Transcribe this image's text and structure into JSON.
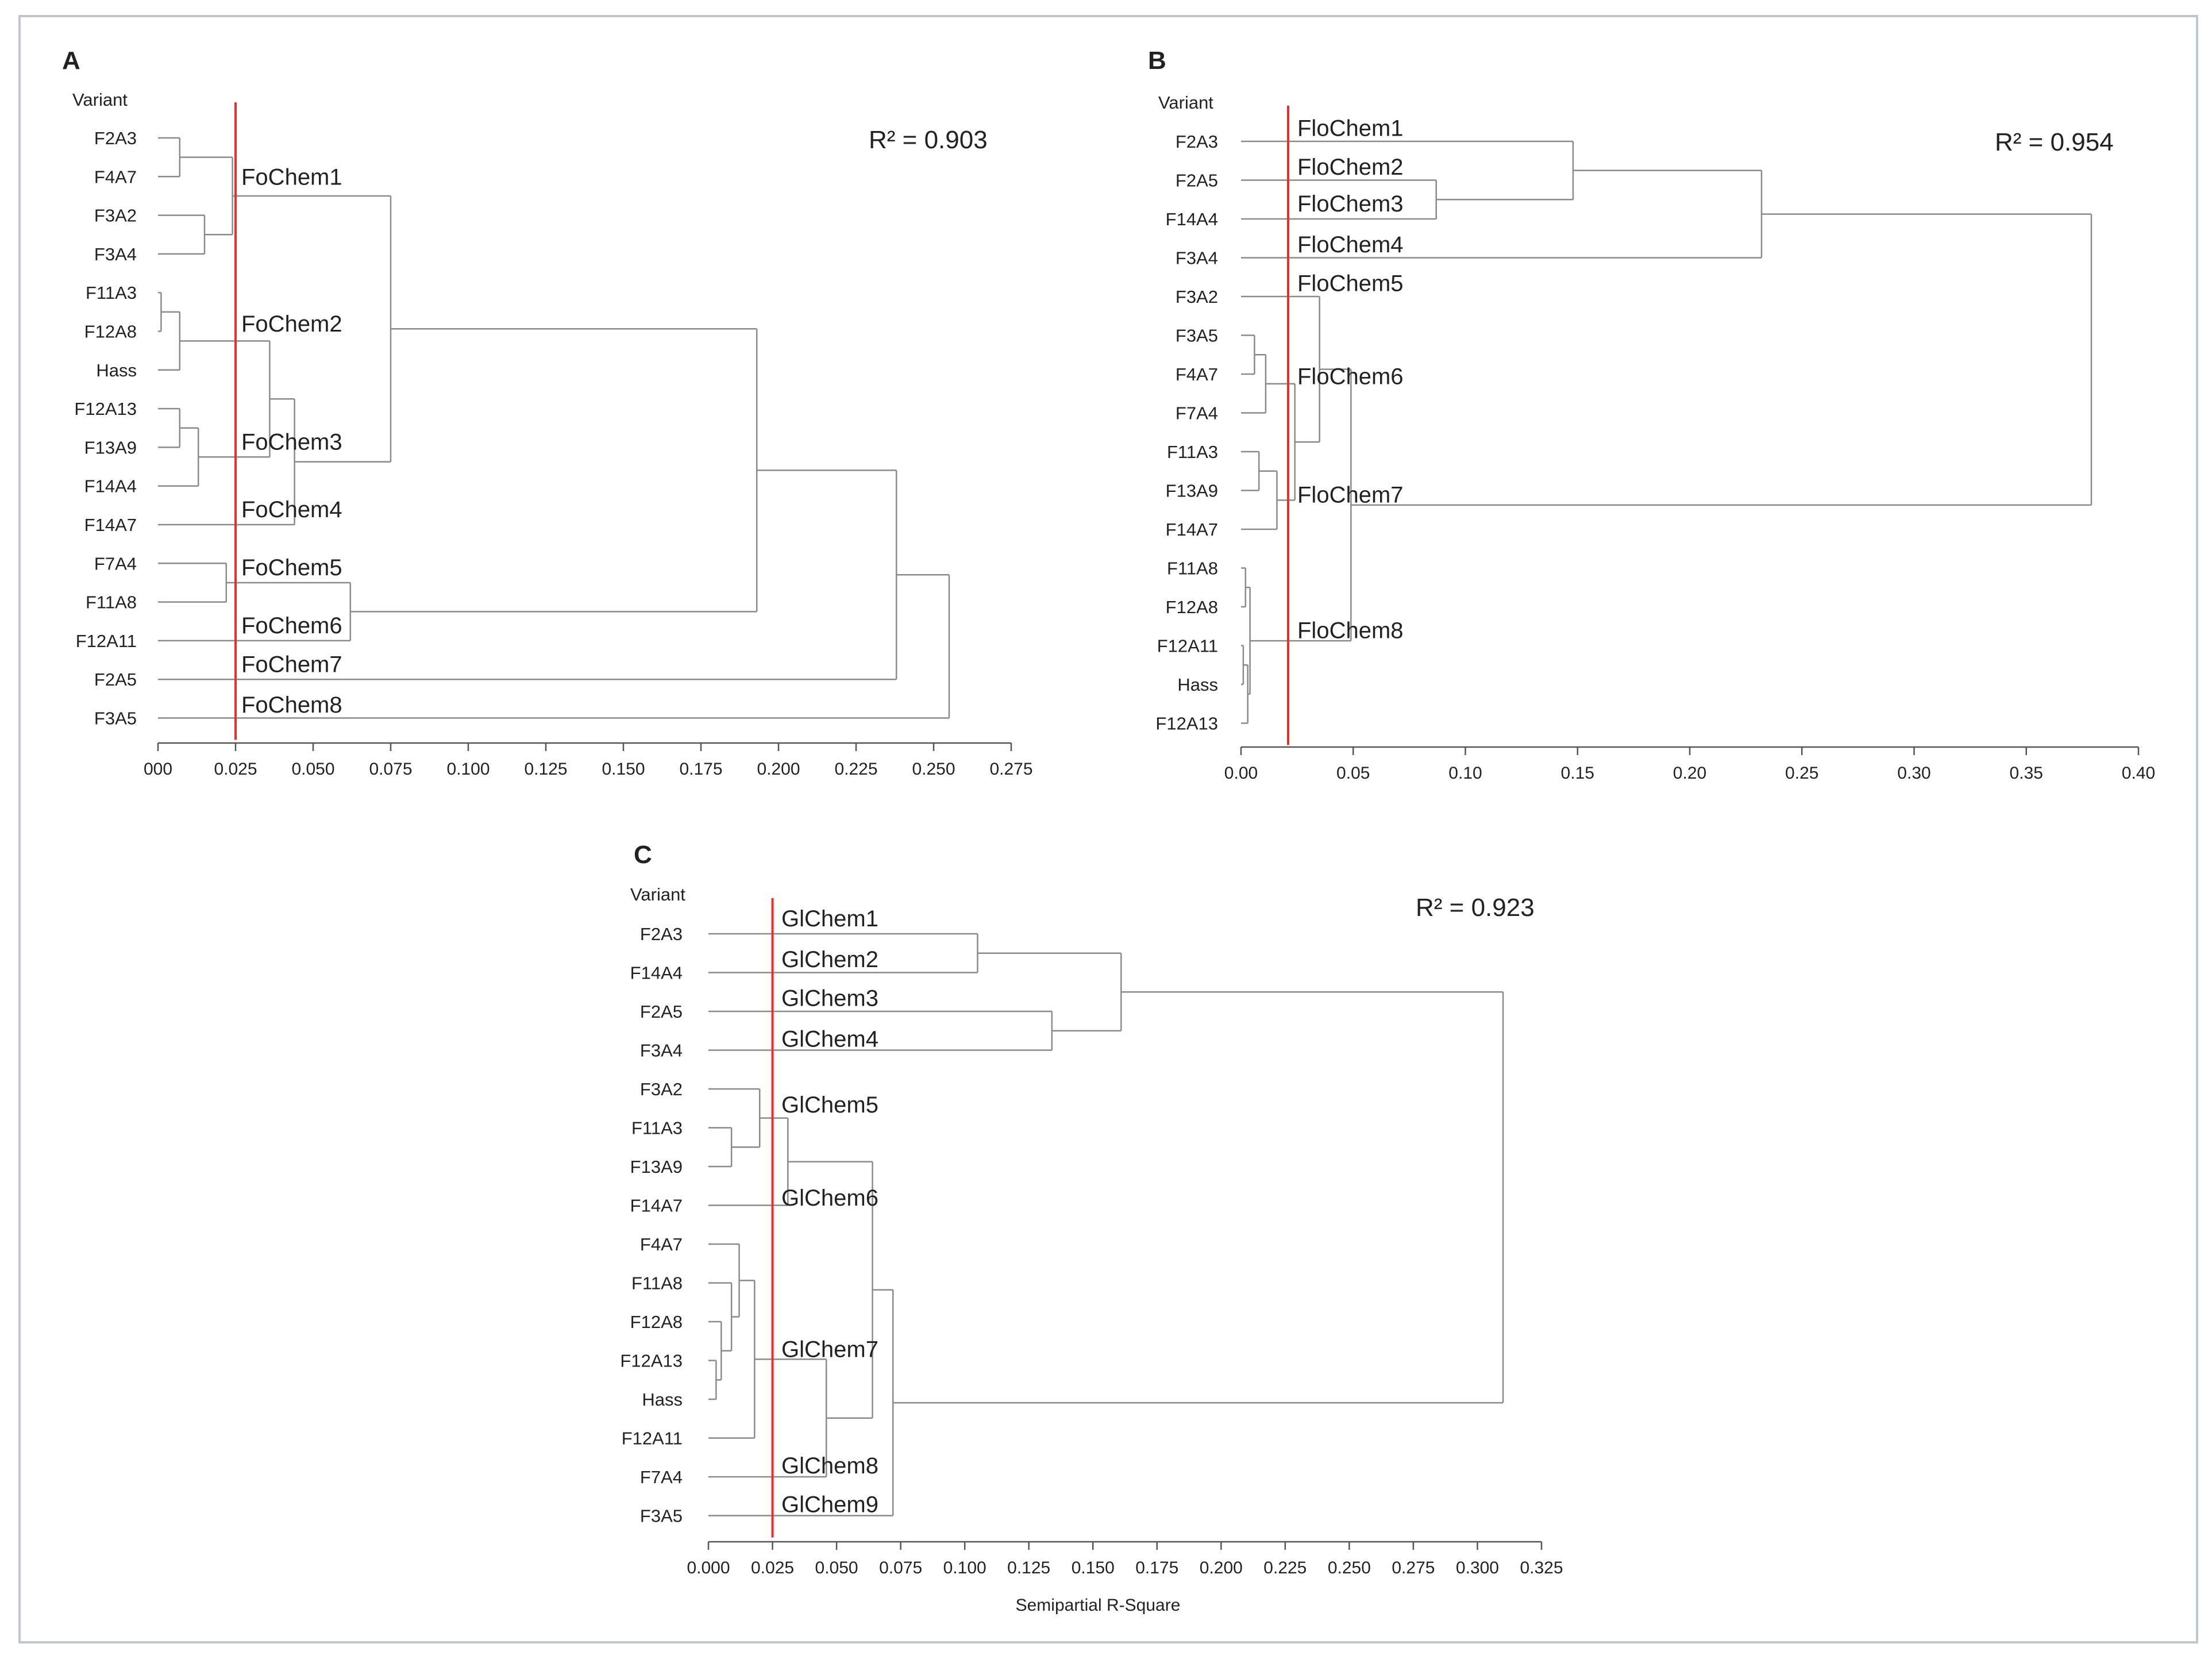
{
  "chart_data": [
    {
      "panel": "A",
      "type": "dendrogram",
      "row_header": "Variant",
      "r_squared": "R² = 0.903",
      "leaves": [
        "F2A3",
        "F4A7",
        "F3A2",
        "F3A4",
        "F11A3",
        "F12A8",
        "Hass",
        "F12A13",
        "F13A9",
        "F14A4",
        "F14A7",
        "F7A4",
        "F11A8",
        "F12A11",
        "F2A5",
        "F3A5"
      ],
      "merges": [
        {
          "a": "F11A3",
          "b": "F12A8",
          "height": 0.001
        },
        {
          "a": "F12A13",
          "b": "F13A9",
          "height": 0.007
        },
        {
          "a": "F2A3",
          "b": "F4A7",
          "height": 0.007
        },
        {
          "a": "F11A3|F12A8",
          "b": "Hass",
          "height": 0.007
        },
        {
          "a": "F12A13|F13A9",
          "b": "F14A4",
          "height": 0.013
        },
        {
          "a": "F3A2",
          "b": "F3A4",
          "height": 0.015
        },
        {
          "a": "F7A4",
          "b": "F11A8",
          "height": 0.022
        },
        {
          "a": "F2A3|F4A7",
          "b": "F3A2|F3A4",
          "height": 0.024
        },
        {
          "a": "F11A3|F12A8|Hass",
          "b": "F12A13|F13A9|F14A4",
          "height": 0.036
        },
        {
          "a": "F11A3|F12A8|Hass|F12A13|F13A9|F14A4",
          "b": "F14A7",
          "height": 0.044
        },
        {
          "a": "F7A4|F11A8",
          "b": "F12A11",
          "height": 0.062
        },
        {
          "a": "F2A3|F4A7|F3A2|F3A4",
          "b": "F11A3|F12A8|Hass|F12A13|F13A9|F14A4|F14A7",
          "height": 0.075
        },
        {
          "a": "F2A3|F4A7|F3A2|F3A4|F11A3|F12A8|Hass|F12A13|F13A9|F14A4|F14A7",
          "b": "F7A4|F11A8|F12A11",
          "height": 0.193
        },
        {
          "a": "F2A3|F4A7|F3A2|F3A4|F11A3|F12A8|Hass|F12A13|F13A9|F14A4|F14A7|F7A4|F11A8|F12A11",
          "b": "F2A5",
          "height": 0.238
        },
        {
          "a": "F2A3|F4A7|F3A2|F3A4|F11A3|F12A8|Hass|F12A13|F13A9|F14A4|F14A7|F7A4|F11A8|F12A11|F2A5",
          "b": "F3A5",
          "height": 0.255
        }
      ],
      "cut_height": 0.025,
      "cluster_labels": [
        {
          "text": "FoChem1",
          "leaf": 1.0
        },
        {
          "text": "FoChem2",
          "leaf": 4.8
        },
        {
          "text": "FoChem3",
          "leaf": 7.85
        },
        {
          "text": "FoChem4",
          "leaf": 9.6
        },
        {
          "text": "FoChem5",
          "leaf": 11.1
        },
        {
          "text": "FoChem6",
          "leaf": 12.6
        },
        {
          "text": "FoChem7",
          "leaf": 13.6
        },
        {
          "text": "FoChem8",
          "leaf": 14.65
        }
      ],
      "x_ticks": [
        "000",
        "0.025",
        "0.050",
        "0.075",
        "0.100",
        "0.125",
        "0.150",
        "0.175",
        "0.200",
        "0.225",
        "0.250",
        "0.275"
      ],
      "x_range": [
        0,
        0.275
      ]
    },
    {
      "panel": "B",
      "type": "dendrogram",
      "row_header": "Variant",
      "r_squared": "R² = 0.954",
      "leaves": [
        "F2A3",
        "F2A5",
        "F14A4",
        "F3A4",
        "F3A2",
        "F3A5",
        "F4A7",
        "F7A4",
        "F11A3",
        "F13A9",
        "F14A7",
        "F11A8",
        "F12A8",
        "F12A11",
        "Hass",
        "F12A13"
      ],
      "merges": [
        {
          "a": "F12A11",
          "b": "Hass",
          "height": 0.001
        },
        {
          "a": "F11A8",
          "b": "F12A8",
          "height": 0.002
        },
        {
          "a": "F12A11|Hass",
          "b": "F12A13",
          "height": 0.003
        },
        {
          "a": "F11A8|F12A8",
          "b": "F12A11|Hass|F12A13",
          "height": 0.004
        },
        {
          "a": "F3A5",
          "b": "F4A7",
          "height": 0.006
        },
        {
          "a": "F11A3",
          "b": "F13A9",
          "height": 0.008
        },
        {
          "a": "F3A5|F4A7",
          "b": "F7A4",
          "height": 0.011
        },
        {
          "a": "F11A3|F13A9",
          "b": "F14A7",
          "height": 0.016
        },
        {
          "a": "F3A5|F4A7|F7A4",
          "b": "F11A3|F13A9|F14A7",
          "height": 0.024
        },
        {
          "a": "F3A2",
          "b": "F3A5|F4A7|F7A4|F11A3|F13A9|F14A7",
          "height": 0.035
        },
        {
          "a": "F3A2|F3A5|F4A7|F7A4|F11A3|F13A9|F14A7",
          "b": "F11A8|F12A8|F12A11|Hass|F12A13",
          "height": 0.049
        },
        {
          "a": "F2A5",
          "b": "F14A4",
          "height": 0.087
        },
        {
          "a": "F2A3",
          "b": "F2A5|F14A4",
          "height": 0.148
        },
        {
          "a": "F2A3|F2A5|F14A4",
          "b": "F3A4",
          "height": 0.232
        },
        {
          "a": "F2A3|F2A5|F14A4|F3A4",
          "b": "F3A2|F3A5|F4A7|F7A4|F11A3|F13A9|F14A7|F11A8|F12A8|F12A11|Hass|F12A13",
          "height": 0.379
        }
      ],
      "cut_height": 0.021,
      "cluster_labels": [
        {
          "text": "FloChem1",
          "leaf": -0.35
        },
        {
          "text": "FloChem2",
          "leaf": 0.65
        },
        {
          "text": "FloChem3",
          "leaf": 1.6
        },
        {
          "text": "FloChem4",
          "leaf": 2.65
        },
        {
          "text": "FloChem5",
          "leaf": 3.65
        },
        {
          "text": "FloChem6",
          "leaf": 6.05
        },
        {
          "text": "FloChem7",
          "leaf": 9.1
        },
        {
          "text": "FloChem8",
          "leaf": 12.6
        }
      ],
      "x_ticks": [
        "0.00",
        "0.05",
        "0.10",
        "0.15",
        "0.20",
        "0.25",
        "0.30",
        "0.35",
        "0.40"
      ],
      "x_range": [
        0,
        0.4
      ]
    },
    {
      "panel": "C",
      "type": "dendrogram",
      "row_header": "Variant",
      "r_squared": "R² = 0.923",
      "leaves": [
        "F2A3",
        "F14A4",
        "F2A5",
        "F3A4",
        "F3A2",
        "F11A3",
        "F13A9",
        "F14A7",
        "F4A7",
        "F11A8",
        "F12A8",
        "F12A13",
        "Hass",
        "F12A11",
        "F7A4",
        "F3A5"
      ],
      "merges": [
        {
          "a": "F12A13",
          "b": "Hass",
          "height": 0.003
        },
        {
          "a": "F12A8",
          "b": "F12A13|Hass",
          "height": 0.005
        },
        {
          "a": "F11A8",
          "b": "F12A8|F12A13|Hass",
          "height": 0.009
        },
        {
          "a": "F11A3",
          "b": "F13A9",
          "height": 0.009
        },
        {
          "a": "F4A7",
          "b": "F11A8|F12A8|F12A13|Hass",
          "height": 0.012
        },
        {
          "a": "F4A7|F11A8|F12A8|F12A13|Hass",
          "b": "F12A11",
          "height": 0.018
        },
        {
          "a": "F3A2",
          "b": "F11A3|F13A9",
          "height": 0.02
        },
        {
          "a": "F3A2|F11A3|F13A9",
          "b": "F14A7",
          "height": 0.031
        },
        {
          "a": "F4A7|F11A8|F12A8|F12A13|Hass|F12A11",
          "b": "F7A4",
          "height": 0.046
        },
        {
          "a": "F3A2|F11A3|F13A9|F14A7",
          "b": "F4A7|F11A8|F12A8|F12A13|Hass|F12A11|F7A4",
          "height": 0.064
        },
        {
          "a": "F3A2|F11A3|F13A9|F14A7|F4A7|F11A8|F12A8|F12A13|Hass|F12A11|F7A4",
          "b": "F3A5",
          "height": 0.072
        },
        {
          "a": "F2A3",
          "b": "F14A4",
          "height": 0.105
        },
        {
          "a": "F2A5",
          "b": "F3A4",
          "height": 0.134
        },
        {
          "a": "F2A3|F14A4",
          "b": "F2A5|F3A4",
          "height": 0.161
        },
        {
          "a": "F2A3|F14A4|F2A5|F3A4",
          "b": "F3A2|F11A3|F13A9|F14A7|F4A7|F11A8|F12A8|F12A13|Hass|F12A11|F7A4|F3A5",
          "height": 0.31
        }
      ],
      "cut_height": 0.025,
      "cluster_labels": [
        {
          "text": "GlChem1",
          "leaf": -0.4
        },
        {
          "text": "GlChem2",
          "leaf": 0.65
        },
        {
          "text": "GlChem3",
          "leaf": 1.65
        },
        {
          "text": "GlChem4",
          "leaf": 2.7
        },
        {
          "text": "GlChem5",
          "leaf": 4.4
        },
        {
          "text": "GlChem6",
          "leaf": 6.8
        },
        {
          "text": "GlChem7",
          "leaf": 10.7
        },
        {
          "text": "GlChem8",
          "leaf": 13.7
        },
        {
          "text": "GlChem9",
          "leaf": 14.7
        }
      ],
      "x_ticks": [
        "0.000",
        "0.025",
        "0.050",
        "0.075",
        "0.100",
        "0.125",
        "0.150",
        "0.175",
        "0.200",
        "0.225",
        "0.250",
        "0.275",
        "0.300",
        "0.325"
      ],
      "x_range": [
        0,
        0.325
      ],
      "xlabel": "Semipartial R-Square"
    }
  ],
  "colors": {
    "tree": "#8a8a8a",
    "cut_line": "#e8302a",
    "text": "#222222",
    "axis": "#555555",
    "frame": "#bfc6cc"
  }
}
